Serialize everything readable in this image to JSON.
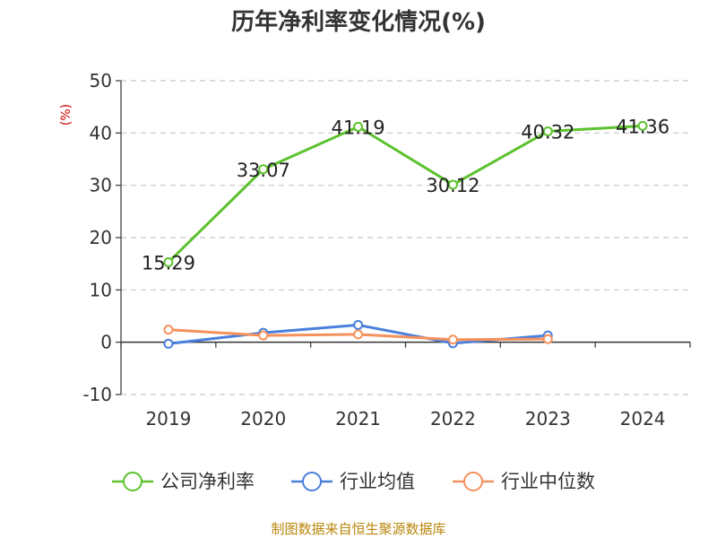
{
  "chart_data": {
    "type": "line",
    "title": "历年净利率变化情况(%)",
    "ylabel": "(%)",
    "xlabel": "",
    "categories": [
      "2019",
      "2020",
      "2021",
      "2022",
      "2023",
      "2024"
    ],
    "ylim": [
      -10,
      50
    ],
    "yticks": [
      50,
      40,
      30,
      20,
      10,
      0,
      -10
    ],
    "grid": true,
    "legend_position": "bottom",
    "series": [
      {
        "name": "公司净利率",
        "color": "#5cc22e",
        "values": [
          15.29,
          33.07,
          41.19,
          30.12,
          40.32,
          41.36
        ],
        "data_labels": [
          "15.29",
          "33.07",
          "41.19",
          "30.12",
          "40.32",
          "41.36"
        ]
      },
      {
        "name": "行业均值",
        "color": "#4a7fdc",
        "values": [
          -0.3,
          1.8,
          3.3,
          -0.2,
          1.3,
          null
        ]
      },
      {
        "name": "行业中位数",
        "color": "#f5915c",
        "values": [
          2.4,
          1.3,
          1.5,
          0.5,
          0.6,
          null
        ]
      }
    ]
  },
  "source": "制图数据来自恒生聚源数据库"
}
